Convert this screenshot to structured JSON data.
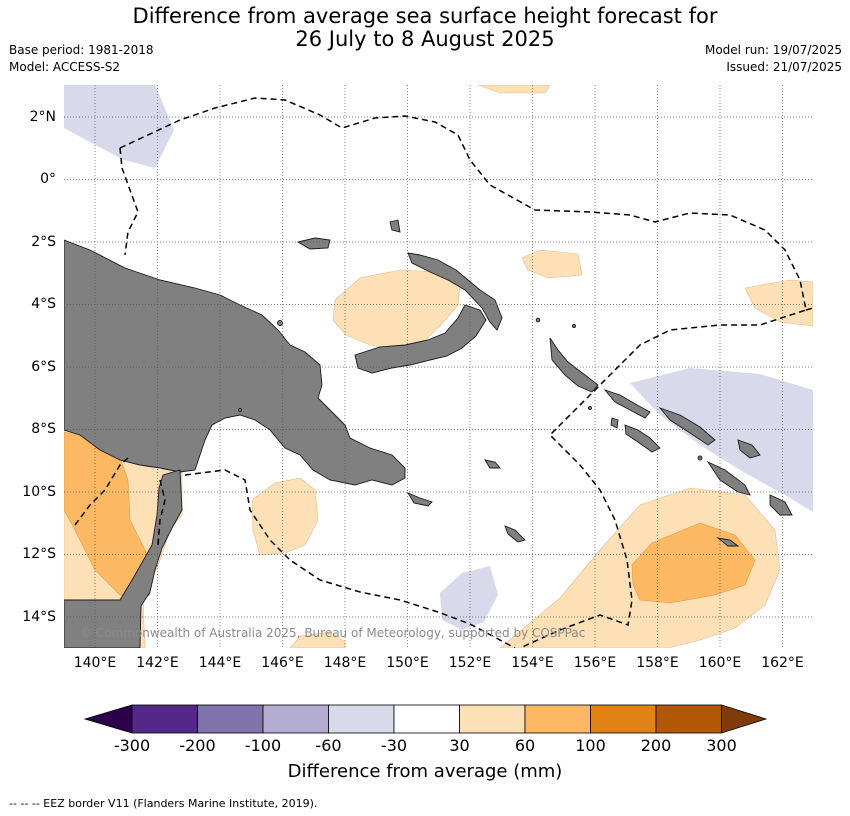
{
  "header": {
    "title_line1": "Difference from average sea surface height forecast for",
    "title_line2": "26 July to 8 August 2025",
    "base_period": "Base period: 1981-2018",
    "model": "Model: ACCESS-S2",
    "model_run": "Model run: 19/07/2025",
    "issued": "Issued: 21/07/2025"
  },
  "map": {
    "lat_labels": [
      "2°N",
      "0°",
      "2°S",
      "4°S",
      "6°S",
      "8°S",
      "10°S",
      "12°S",
      "14°S"
    ],
    "lon_labels": [
      "140°E",
      "142°E",
      "144°E",
      "146°E",
      "148°E",
      "150°E",
      "152°E",
      "154°E",
      "156°E",
      "158°E",
      "160°E",
      "162°E"
    ],
    "copyright": "© Commonwealth of Australia 2025, Bureau of Meteorology, supported by COSPPac",
    "colors": {
      "land": "#808080",
      "grid": "#555555",
      "eez_border": "#000000"
    }
  },
  "colorbar": {
    "ticks": [
      "-300",
      "-200",
      "-100",
      "-60",
      "-30",
      "30",
      "60",
      "100",
      "200",
      "300"
    ],
    "colors": [
      "#2d004b",
      "#542788",
      "#8073ac",
      "#b2abd2",
      "#d8daeb",
      "#ffffff",
      "#fee0b6",
      "#fdb863",
      "#e08214",
      "#b35806",
      "#7f3b08"
    ],
    "label": "Difference from average (mm)"
  },
  "legend": {
    "text": "--  --  -- EEZ border V11 (Flanders Marine Institute, 2019)."
  }
}
